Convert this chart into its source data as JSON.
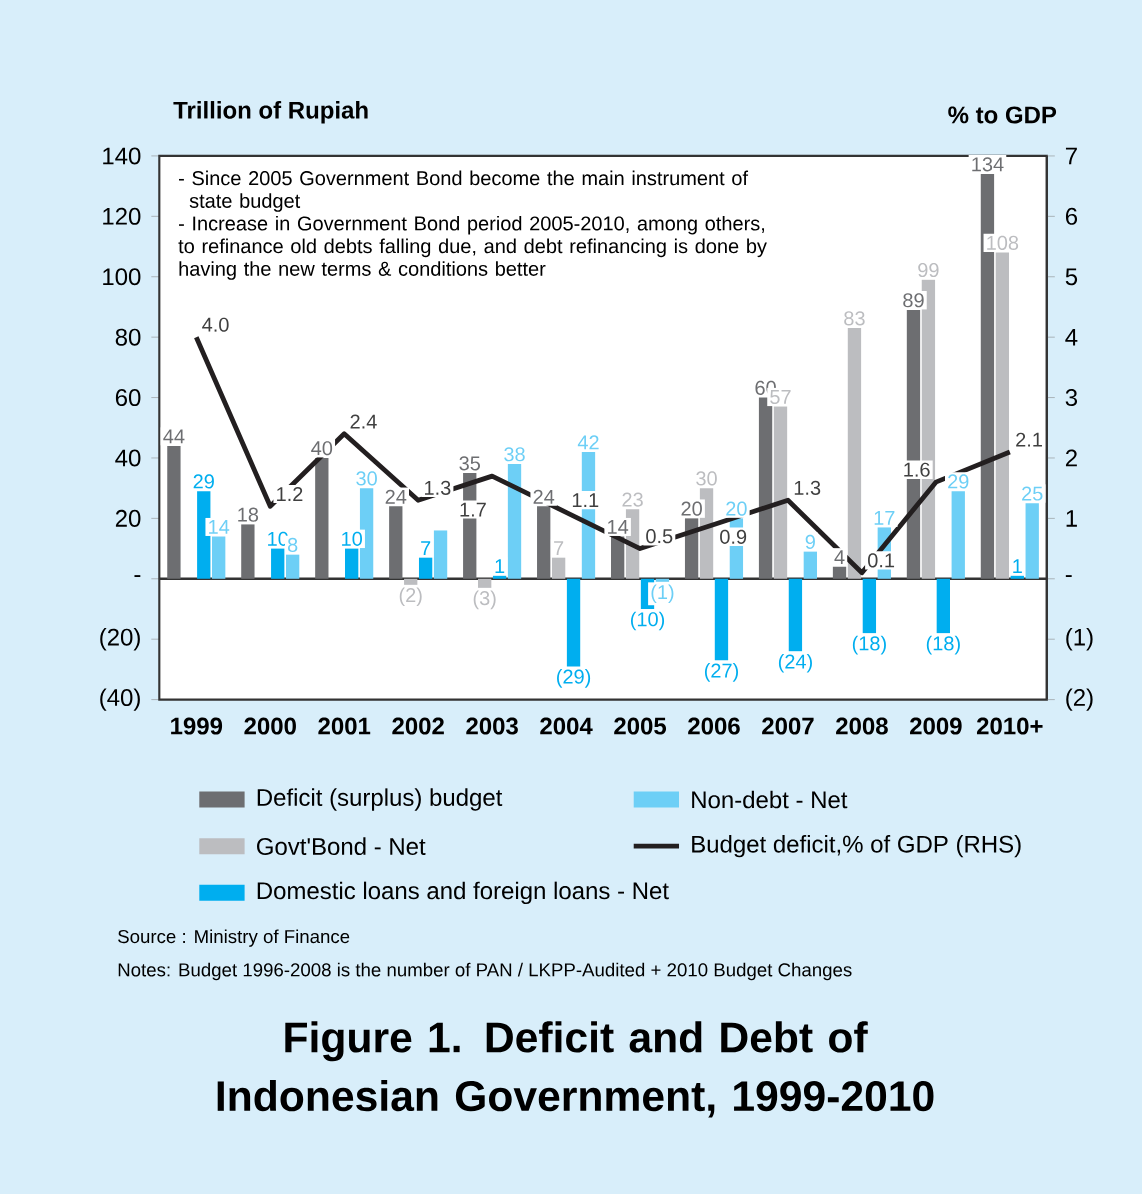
{
  "chart_data": {
    "type": "bar",
    "title": "Figure 1. Deficit and Debt of Indonesian Government, 1999-2010",
    "ylabel": "Trillion of Rupiah",
    "y2label": "% to GDP",
    "categories": [
      "1999",
      "2000",
      "2001",
      "2002",
      "2003",
      "2004",
      "2005",
      "2006",
      "2007",
      "2008",
      "2009",
      "2010+"
    ],
    "series": [
      {
        "name": "Deficit (surplus) budget",
        "color": "#6d6e71",
        "values": [
          44,
          18,
          40,
          24,
          35,
          24,
          14,
          20,
          60,
          4,
          89,
          134
        ],
        "value_labels": [
          "44",
          "18",
          "40",
          "24",
          "35",
          "24",
          "14",
          "20",
          "60",
          "4",
          "89",
          "134"
        ]
      },
      {
        "name": "Govt'Bond - Net",
        "color": "#bcbdc0",
        "values": [
          null,
          null,
          null,
          -2,
          -3,
          7,
          23,
          30,
          57,
          83,
          99,
          108
        ],
        "value_labels": [
          null,
          null,
          null,
          "(2)",
          "(3)",
          "7",
          "23",
          "30",
          "57",
          "83",
          "99",
          "108"
        ]
      },
      {
        "name": "Domestic loans and foreign loans - Net",
        "color": "#00aeef",
        "values": [
          29,
          10,
          10,
          7,
          1,
          -29,
          -10,
          -27,
          -24,
          -18,
          -18,
          1
        ],
        "value_labels": [
          "29",
          "10",
          "10",
          "7",
          "1",
          "(29)",
          "(10)",
          "(27)",
          "(24)",
          "(18)",
          "(18)",
          "1"
        ]
      },
      {
        "name": "Non-debt - Net",
        "color": "#6dcff6",
        "values": [
          14,
          8,
          30,
          16,
          38,
          42,
          -1,
          20,
          9,
          17,
          29,
          25
        ],
        "value_labels": [
          "14",
          "8",
          "30",
          null,
          "38",
          "42",
          "(1)",
          "20",
          "9",
          "17",
          "29",
          "25"
        ]
      },
      {
        "name": "Budget deficit,% of GDP (RHS)",
        "type": "line",
        "axis": "y2",
        "color": "#231f20",
        "values": [
          4.0,
          1.2,
          2.4,
          1.3,
          1.7,
          1.1,
          0.5,
          0.9,
          1.3,
          0.1,
          1.6,
          2.1
        ],
        "value_labels": [
          "4.0",
          "1.2",
          "2.4",
          "1.3",
          "1.7",
          "1.1",
          "0.5",
          "0.9",
          "1.3",
          "0.1",
          "1.6",
          "2.1"
        ]
      }
    ],
    "ylim": [
      -40,
      140
    ],
    "yticks": [
      {
        "value": -40,
        "label": "(40)"
      },
      {
        "value": -20,
        "label": "(20)"
      },
      {
        "value": 0,
        "label": "-"
      },
      20,
      40,
      60,
      80,
      100,
      120,
      140
    ],
    "y2lim": [
      -2,
      7
    ],
    "y2ticks": [
      {
        "value": -2,
        "label": "(2)"
      },
      {
        "value": -1,
        "label": "(1)"
      },
      {
        "value": 0,
        "label": "-"
      },
      1,
      2,
      3,
      4,
      5,
      6,
      7
    ],
    "legend": "bottom",
    "annotations": [
      "- Since 2005 Government Bond  become the main instrument of state budget",
      "- Increase in Government Bond period 2005-2010, among others, to refinance old debts falling due, and debt refinancing is done by having the new terms & conditions better",
      "Source : Ministry of Finance",
      "Notes: Budget 1996-2008 is the number of PAN / LKPP-Audited + 2010 Budget Changes"
    ]
  }
}
